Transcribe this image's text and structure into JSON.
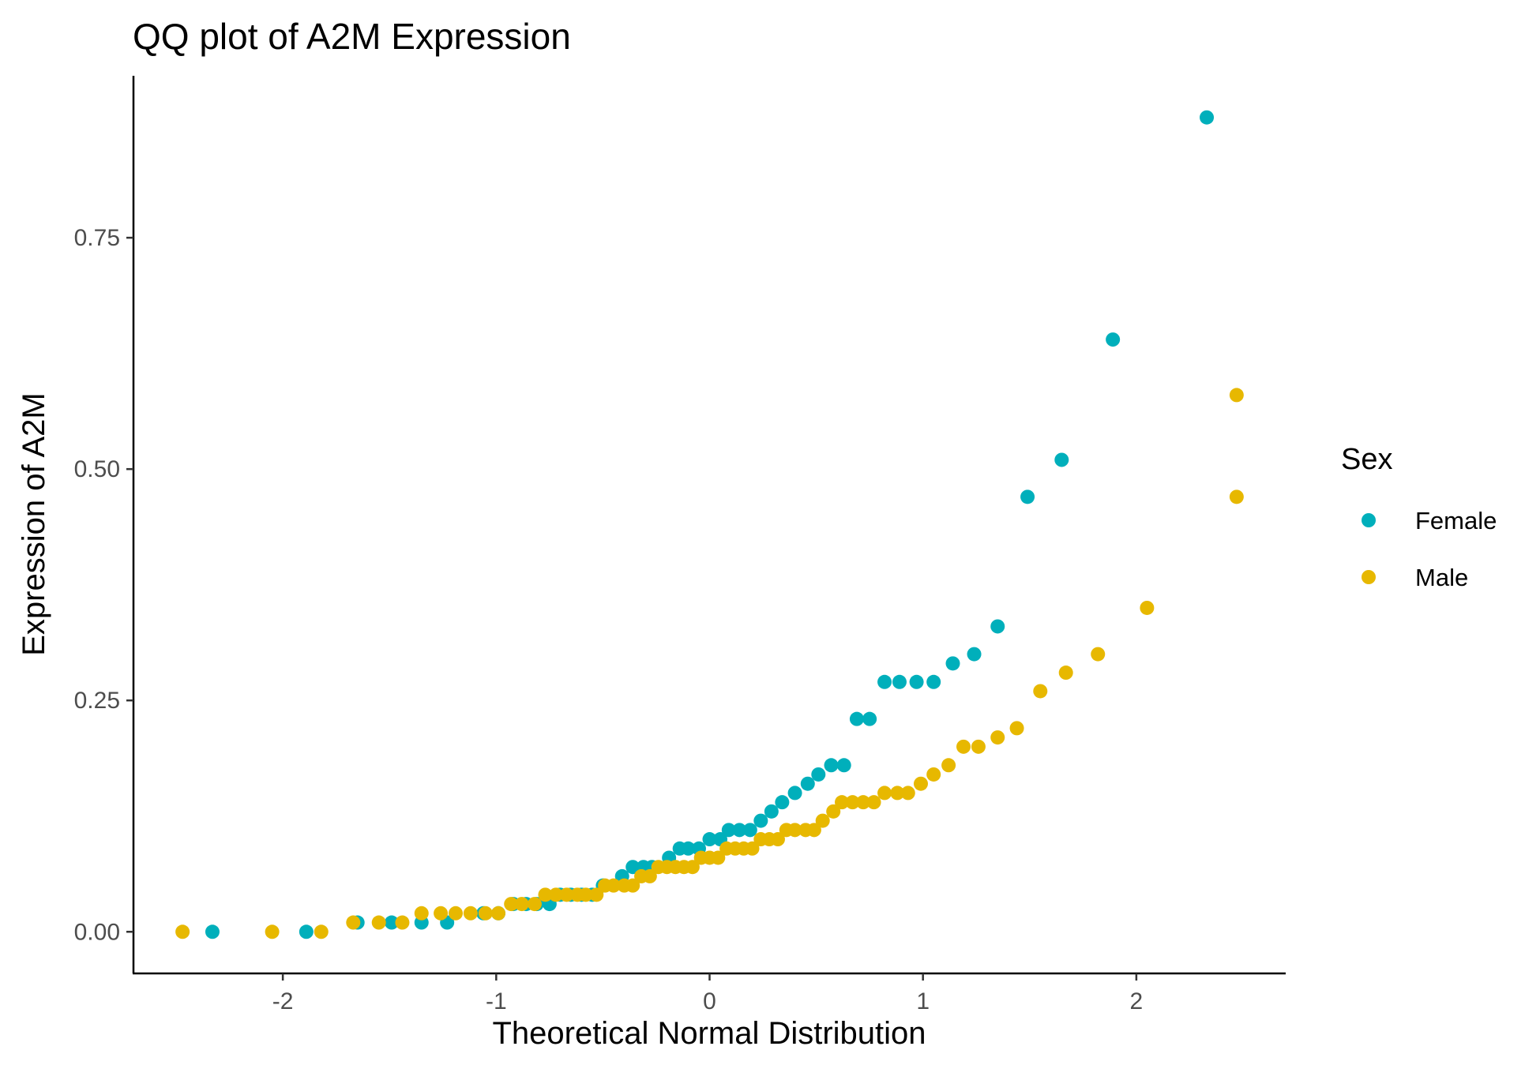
{
  "chart_data": {
    "type": "scatter",
    "title": "QQ plot of A2M Expression",
    "xlabel": "Theoretical Normal Distribution",
    "ylabel": "Expression of A2M",
    "xlim": [
      -2.7,
      2.7
    ],
    "ylim": [
      -0.045,
      0.925
    ],
    "x_ticks": [
      -2,
      -1,
      0,
      1,
      2
    ],
    "x_tick_labels": [
      "-2",
      "-1",
      "0",
      "1",
      "2"
    ],
    "y_ticks": [
      0,
      0.25,
      0.5,
      0.75
    ],
    "y_tick_labels": [
      "0.00",
      "0.25",
      "0.50",
      "0.75"
    ],
    "grid": false,
    "legend": {
      "title": "Sex",
      "position": "right"
    },
    "series": [
      {
        "name": "Female",
        "color": "#00AFBB",
        "points": [
          [
            -2.33,
            0.0
          ],
          [
            -1.89,
            0.0
          ],
          [
            -1.65,
            0.01
          ],
          [
            -1.49,
            0.01
          ],
          [
            -1.35,
            0.01
          ],
          [
            -1.23,
            0.01
          ],
          [
            -1.06,
            0.02
          ],
          [
            -0.99,
            0.02
          ],
          [
            -0.92,
            0.03
          ],
          [
            -0.86,
            0.03
          ],
          [
            -0.81,
            0.03
          ],
          [
            -0.75,
            0.03
          ],
          [
            -0.7,
            0.04
          ],
          [
            -0.65,
            0.04
          ],
          [
            -0.6,
            0.04
          ],
          [
            -0.55,
            0.04
          ],
          [
            -0.5,
            0.05
          ],
          [
            -0.41,
            0.06
          ],
          [
            -0.36,
            0.07
          ],
          [
            -0.31,
            0.07
          ],
          [
            -0.27,
            0.07
          ],
          [
            -0.19,
            0.08
          ],
          [
            -0.14,
            0.09
          ],
          [
            -0.1,
            0.09
          ],
          [
            -0.05,
            0.09
          ],
          [
            0.0,
            0.1
          ],
          [
            0.05,
            0.1
          ],
          [
            0.09,
            0.11
          ],
          [
            0.14,
            0.11
          ],
          [
            0.19,
            0.11
          ],
          [
            0.24,
            0.12
          ],
          [
            0.29,
            0.13
          ],
          [
            0.34,
            0.14
          ],
          [
            0.4,
            0.15
          ],
          [
            0.46,
            0.16
          ],
          [
            0.51,
            0.17
          ],
          [
            0.57,
            0.18
          ],
          [
            0.63,
            0.18
          ],
          [
            0.69,
            0.23
          ],
          [
            0.75,
            0.23
          ],
          [
            0.82,
            0.27
          ],
          [
            0.89,
            0.27
          ],
          [
            0.97,
            0.27
          ],
          [
            1.05,
            0.27
          ],
          [
            1.14,
            0.29
          ],
          [
            1.24,
            0.3
          ],
          [
            1.35,
            0.33
          ],
          [
            1.49,
            0.47
          ],
          [
            1.65,
            0.51
          ],
          [
            1.89,
            0.64
          ],
          [
            2.33,
            0.88
          ]
        ]
      },
      {
        "name": "Male",
        "color": "#E7B800",
        "points": [
          [
            -2.47,
            0.0
          ],
          [
            -2.05,
            0.0
          ],
          [
            -1.82,
            0.0
          ],
          [
            -1.67,
            0.01
          ],
          [
            -1.55,
            0.01
          ],
          [
            -1.44,
            0.01
          ],
          [
            -1.35,
            0.02
          ],
          [
            -1.26,
            0.02
          ],
          [
            -1.19,
            0.02
          ],
          [
            -1.12,
            0.02
          ],
          [
            -1.05,
            0.02
          ],
          [
            -0.99,
            0.02
          ],
          [
            -0.93,
            0.03
          ],
          [
            -0.88,
            0.03
          ],
          [
            -0.82,
            0.03
          ],
          [
            -0.77,
            0.04
          ],
          [
            -0.72,
            0.04
          ],
          [
            -0.67,
            0.04
          ],
          [
            -0.62,
            0.04
          ],
          [
            -0.58,
            0.04
          ],
          [
            -0.53,
            0.04
          ],
          [
            -0.49,
            0.05
          ],
          [
            -0.45,
            0.05
          ],
          [
            -0.4,
            0.05
          ],
          [
            -0.36,
            0.05
          ],
          [
            -0.32,
            0.06
          ],
          [
            -0.28,
            0.06
          ],
          [
            -0.24,
            0.07
          ],
          [
            -0.2,
            0.07
          ],
          [
            -0.16,
            0.07
          ],
          [
            -0.12,
            0.07
          ],
          [
            -0.08,
            0.07
          ],
          [
            -0.04,
            0.08
          ],
          [
            0.0,
            0.08
          ],
          [
            0.04,
            0.08
          ],
          [
            0.08,
            0.09
          ],
          [
            0.12,
            0.09
          ],
          [
            0.16,
            0.09
          ],
          [
            0.2,
            0.09
          ],
          [
            0.24,
            0.1
          ],
          [
            0.28,
            0.1
          ],
          [
            0.32,
            0.1
          ],
          [
            0.36,
            0.11
          ],
          [
            0.4,
            0.11
          ],
          [
            0.45,
            0.11
          ],
          [
            0.49,
            0.11
          ],
          [
            0.53,
            0.12
          ],
          [
            0.58,
            0.13
          ],
          [
            0.62,
            0.14
          ],
          [
            0.67,
            0.14
          ],
          [
            0.72,
            0.14
          ],
          [
            0.77,
            0.14
          ],
          [
            0.82,
            0.15
          ],
          [
            0.88,
            0.15
          ],
          [
            0.93,
            0.15
          ],
          [
            0.99,
            0.16
          ],
          [
            1.05,
            0.17
          ],
          [
            1.12,
            0.18
          ],
          [
            1.19,
            0.2
          ],
          [
            1.26,
            0.2
          ],
          [
            1.35,
            0.21
          ],
          [
            1.44,
            0.22
          ],
          [
            1.55,
            0.26
          ],
          [
            1.67,
            0.28
          ],
          [
            1.82,
            0.3
          ],
          [
            2.05,
            0.35
          ],
          [
            2.47,
            0.47
          ],
          [
            2.47,
            0.58
          ]
        ]
      }
    ]
  }
}
